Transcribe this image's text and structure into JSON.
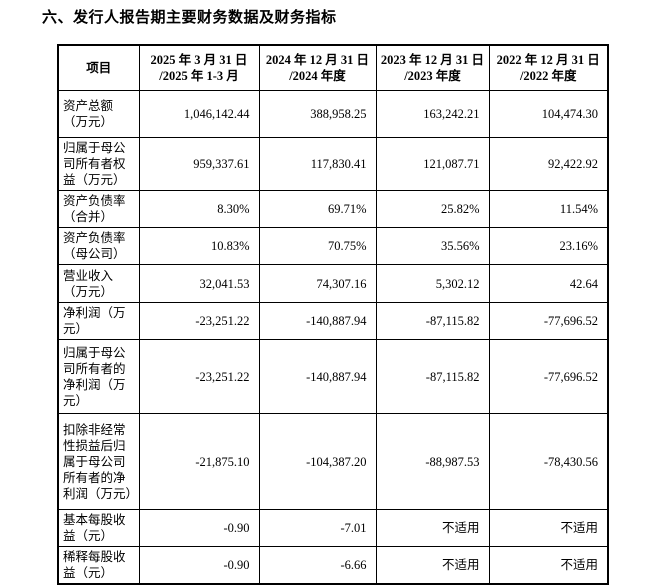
{
  "title": "六、发行人报告期主要财务数据及财务指标",
  "colors": {
    "background": "#ffffff",
    "text": "#000000",
    "border": "#000000"
  },
  "table": {
    "headers": [
      "项目",
      "2025 年 3 月 31 日\n/2025 年 1-3 月",
      "2024 年 12 月 31 日\n/2024 年度",
      "2023 年 12 月 31 日\n/2023 年度",
      "2022 年 12 月 31 日\n/2022 年度"
    ],
    "rows": [
      {
        "label": "资产总额（万元）",
        "values": [
          "1,046,142.44",
          "388,958.25",
          "163,242.21",
          "104,474.30"
        ]
      },
      {
        "label": "归属于母公司所有者权益（万元）",
        "values": [
          "959,337.61",
          "117,830.41",
          "121,087.71",
          "92,422.92"
        ]
      },
      {
        "label": "资产负债率（合并）",
        "values": [
          "8.30%",
          "69.71%",
          "25.82%",
          "11.54%"
        ]
      },
      {
        "label": "资产负债率（母公司）",
        "values": [
          "10.83%",
          "70.75%",
          "35.56%",
          "23.16%"
        ]
      },
      {
        "label": "营业收入（万元）",
        "values": [
          "32,041.53",
          "74,307.16",
          "5,302.12",
          "42.64"
        ]
      },
      {
        "label": "净利润（万元）",
        "values": [
          "-23,251.22",
          "-140,887.94",
          "-87,115.82",
          "-77,696.52"
        ]
      },
      {
        "label": "归属于母公司所有者的净利润（万元）",
        "values": [
          "-23,251.22",
          "-140,887.94",
          "-87,115.82",
          "-77,696.52"
        ]
      },
      {
        "label": "扣除非经常性损益后归属于母公司所有者的净利润（万元）",
        "values": [
          "-21,875.10",
          "-104,387.20",
          "-88,987.53",
          "-78,430.56"
        ]
      },
      {
        "label": "基本每股收益（元）",
        "values": [
          "-0.90",
          "-7.01",
          "不适用",
          "不适用"
        ]
      },
      {
        "label": "稀释每股收益（元）",
        "values": [
          "-0.90",
          "-6.66",
          "不适用",
          "不适用"
        ]
      }
    ]
  }
}
